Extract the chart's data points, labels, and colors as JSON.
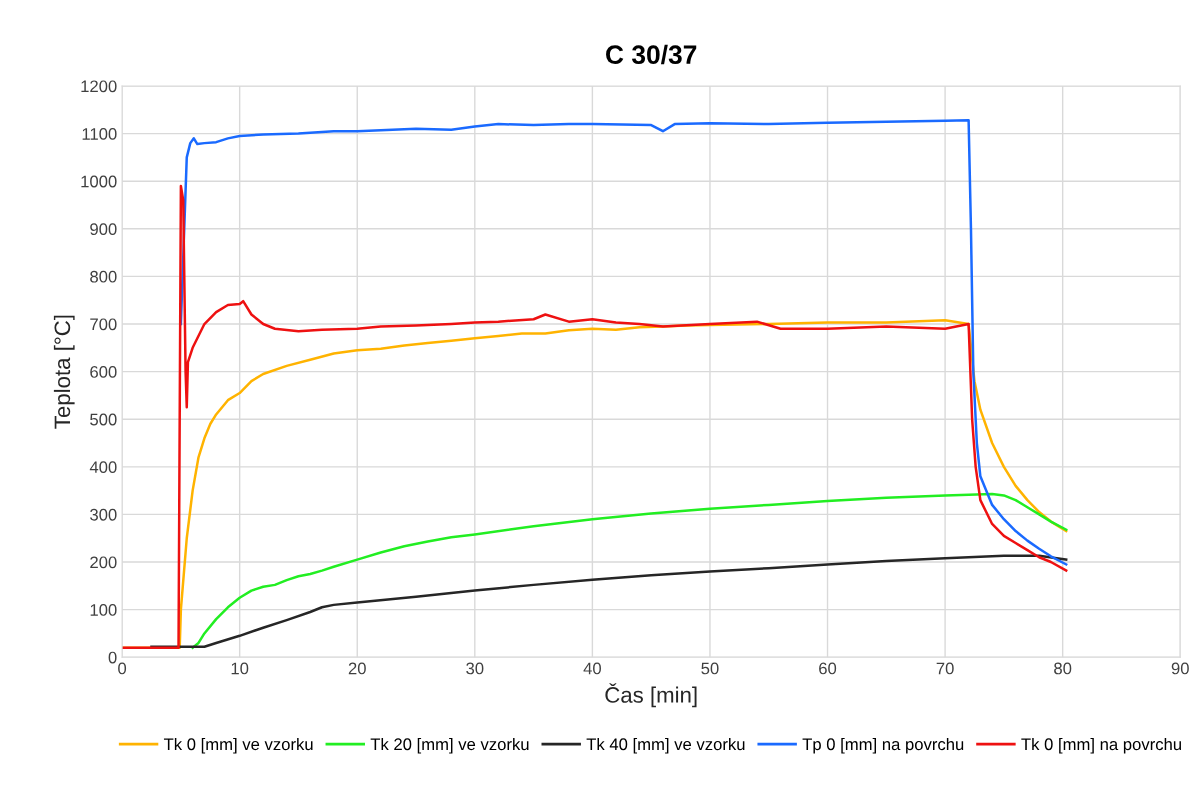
{
  "chart_data": {
    "type": "line",
    "title": "C 30/37",
    "xlabel": "Čas [min]",
    "ylabel": "Teplota [°C]",
    "xlim": [
      0,
      90
    ],
    "xticks": [
      0,
      10,
      20,
      30,
      40,
      50,
      60,
      70,
      80,
      90
    ],
    "ylim": [
      0,
      1200
    ],
    "yticks": [
      0,
      100,
      200,
      300,
      400,
      500,
      600,
      700,
      800,
      900,
      1000,
      1100,
      1200
    ],
    "grid": true,
    "legend": "bottom",
    "marker": "none",
    "line_style": "solid",
    "series": [
      {
        "name": "Tk 0 [mm] ve vzorku",
        "color": "#ffb300",
        "x": [
          0,
          4.9,
          5,
          5.5,
          6,
          6.5,
          7,
          7.5,
          8,
          9,
          10,
          11,
          12,
          14,
          16,
          18,
          20,
          22,
          24,
          26,
          28,
          30,
          32,
          34,
          36,
          38,
          40,
          42,
          44,
          46,
          48,
          50,
          55,
          60,
          65,
          70,
          72,
          72.5,
          73,
          74,
          75,
          76,
          77,
          78,
          79,
          80.3
        ],
        "values": [
          20,
          20,
          100,
          250,
          350,
          420,
          460,
          490,
          510,
          540,
          555,
          580,
          595,
          612,
          625,
          638,
          645,
          648,
          655,
          660,
          665,
          670,
          675,
          680,
          680,
          687,
          690,
          688,
          693,
          695,
          697,
          698,
          700,
          703,
          703,
          708,
          700,
          580,
          520,
          450,
          400,
          360,
          330,
          305,
          285,
          265
        ]
      },
      {
        "name": "Tk 20 [mm] ve vzorku",
        "color": "#22ee22",
        "x": [
          6,
          6.5,
          7,
          8,
          9,
          10,
          11,
          12,
          13,
          14,
          15,
          16,
          17,
          18,
          20,
          22,
          24,
          26,
          28,
          30,
          35,
          40,
          45,
          50,
          55,
          60,
          65,
          70,
          74,
          75,
          76,
          77,
          78,
          79,
          80.3
        ],
        "values": [
          20,
          30,
          50,
          80,
          105,
          125,
          140,
          148,
          152,
          162,
          170,
          175,
          182,
          190,
          205,
          220,
          233,
          243,
          252,
          258,
          275,
          290,
          302,
          312,
          320,
          328,
          335,
          340,
          343,
          340,
          330,
          315,
          300,
          285,
          268
        ]
      },
      {
        "name": "Tk 40 [mm] ve vzorku",
        "color": "#262626",
        "x": [
          2.5,
          7,
          8,
          10,
          12,
          14,
          16,
          17,
          18,
          20,
          25,
          30,
          35,
          40,
          45,
          50,
          55,
          60,
          65,
          70,
          75,
          78,
          80.3
        ],
        "values": [
          22,
          22,
          30,
          45,
          62,
          78,
          95,
          105,
          110,
          115,
          127,
          140,
          152,
          163,
          172,
          180,
          187,
          195,
          202,
          208,
          213,
          213,
          205
        ]
      },
      {
        "name": "Tp 0 [mm] na povrchu",
        "color": "#1a6aff",
        "x": [
          5,
          5.5,
          5.8,
          6.1,
          6.4,
          7,
          8,
          9,
          10,
          12,
          15,
          18,
          20,
          25,
          28,
          30,
          32,
          35,
          38,
          40,
          45,
          46,
          47,
          50,
          55,
          60,
          65,
          70,
          72,
          72.2,
          72.4,
          72.7,
          73,
          74,
          75,
          76,
          77,
          78,
          79,
          80.3
        ],
        "values": [
          700,
          1050,
          1080,
          1090,
          1078,
          1080,
          1082,
          1090,
          1095,
          1098,
          1100,
          1105,
          1105,
          1110,
          1108,
          1115,
          1120,
          1118,
          1120,
          1120,
          1118,
          1105,
          1120,
          1122,
          1120,
          1123,
          1125,
          1127,
          1128,
          900,
          600,
          450,
          380,
          320,
          290,
          265,
          245,
          228,
          212,
          195
        ]
      },
      {
        "name": "Tk 0 [mm] na povrchu",
        "color": "#ee1111",
        "x": [
          0,
          4.8,
          5,
          5.2,
          5.4,
          5.5,
          5.6,
          6,
          7,
          8,
          9,
          10,
          10.3,
          11,
          12,
          13,
          15,
          17,
          20,
          22,
          25,
          28,
          30,
          32,
          35,
          36,
          38,
          40,
          42,
          44,
          46,
          50,
          54,
          56,
          60,
          65,
          70,
          72,
          72.3,
          72.6,
          73,
          74,
          75,
          76,
          77,
          78,
          79,
          80.3
        ],
        "values": [
          20,
          20,
          990,
          960,
          600,
          525,
          620,
          650,
          700,
          725,
          740,
          742,
          748,
          720,
          700,
          690,
          685,
          688,
          690,
          695,
          697,
          700,
          703,
          705,
          710,
          720,
          705,
          710,
          703,
          700,
          695,
          700,
          705,
          690,
          690,
          695,
          690,
          700,
          500,
          400,
          330,
          280,
          255,
          240,
          225,
          210,
          200,
          182
        ]
      }
    ]
  }
}
